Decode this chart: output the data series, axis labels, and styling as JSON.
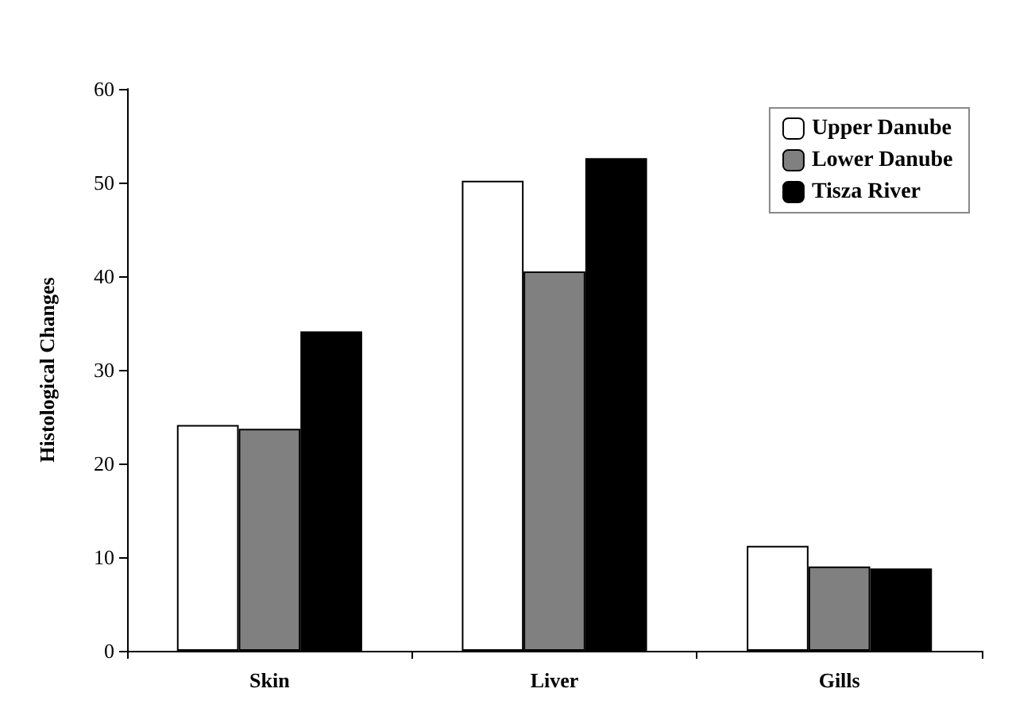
{
  "chart_data": {
    "type": "bar",
    "ylabel": "Histological Changes",
    "categories": [
      "Skin",
      "Liver",
      "Gills"
    ],
    "series": [
      {
        "name": "Upper Danube",
        "color": "#ffffff",
        "values": [
          24.1,
          50.2,
          11.2
        ]
      },
      {
        "name": "Lower Danube",
        "color": "#808080",
        "values": [
          23.7,
          40.5,
          9.0
        ]
      },
      {
        "name": "Tisza River",
        "color": "#000000",
        "values": [
          34.1,
          52.6,
          8.8
        ]
      }
    ],
    "ylim": [
      0,
      60
    ],
    "yticks": [
      0,
      10,
      20,
      30,
      40,
      50,
      60
    ],
    "grid": false,
    "legend": "top right"
  }
}
